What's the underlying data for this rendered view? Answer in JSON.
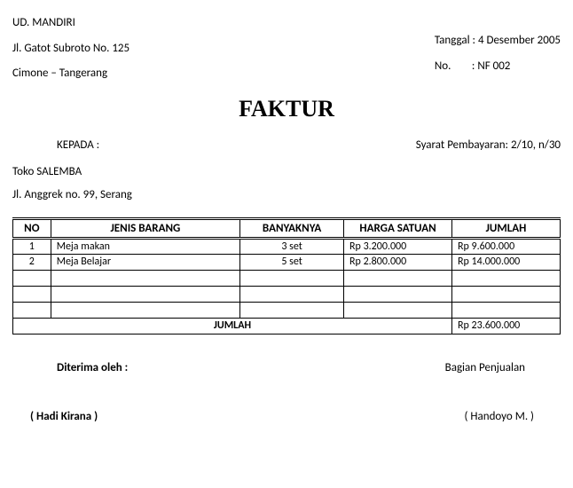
{
  "sender": {
    "name": "UD. MANDIRI",
    "address1": "Jl. Gatot Subroto No. 125",
    "address2": "Cimone – Tangerang"
  },
  "meta": {
    "date_label": "Tanggal",
    "date_value": "4 Desember 2005",
    "no_label": "No.",
    "no_value": "NF 002"
  },
  "title": "FAKTUR",
  "kepada_label": "KEPADA :",
  "syarat_label": "Syarat Pembayaran:",
  "syarat_value": "2/10, n/30",
  "recipient": {
    "name": "Toko SALEMBA",
    "address": "Jl. Anggrek no. 99, Serang"
  },
  "table": {
    "headers": {
      "no": "NO",
      "jenis": "JENIS BARANG",
      "banyak": "BANYAKNYA",
      "harga": "HARGA SATUAN",
      "jumlah": "JUMLAH"
    },
    "rows": [
      {
        "no": "1",
        "jenis": "Meja makan",
        "banyak": "3 set",
        "harga": "Rp 3.200.000",
        "jumlah": "Rp  9.600.000"
      },
      {
        "no": "2",
        "jenis": "Meja Belajar",
        "banyak": "5 set",
        "harga": "Rp 2.800.000",
        "jumlah": "Rp 14.000.000"
      },
      {
        "no": "",
        "jenis": "",
        "banyak": "",
        "harga": "",
        "jumlah": ""
      },
      {
        "no": "",
        "jenis": "",
        "banyak": "",
        "harga": "",
        "jumlah": ""
      },
      {
        "no": "",
        "jenis": "",
        "banyak": "",
        "harga": "",
        "jumlah": ""
      }
    ],
    "total_label": "JUMLAH",
    "total_value": "Rp 23.600.000"
  },
  "signatures": {
    "left_label": "Diterima oleh :",
    "right_label": "Bagian Penjualan",
    "left_name": "(          Hadi Kirana          )",
    "right_name": "(   Handoyo M.   )"
  }
}
